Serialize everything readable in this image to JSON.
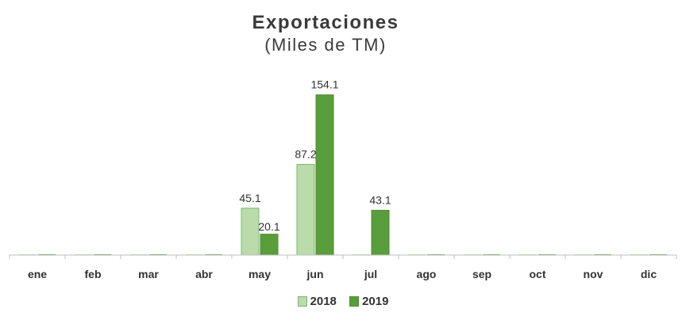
{
  "chart_data": {
    "type": "bar",
    "title": "Exportaciones",
    "subtitle": "(Miles de TM)",
    "categories": [
      "ene",
      "feb",
      "mar",
      "abr",
      "may",
      "jun",
      "jul",
      "ago",
      "sep",
      "oct",
      "nov",
      "dic"
    ],
    "series": [
      {
        "name": "2018",
        "color": "#b9dcaa",
        "border": "#79b865",
        "values": [
          0,
          0,
          0,
          0,
          45.1,
          87.2,
          0,
          0,
          0,
          0,
          0,
          0
        ],
        "labels": [
          "",
          "",
          "",
          "",
          "45.1",
          "87.2",
          "",
          "",
          "",
          "",
          "",
          ""
        ]
      },
      {
        "name": "2019",
        "color": "#5a9e3c",
        "border": "#4f8a34",
        "values": [
          0,
          0,
          0,
          0,
          20.1,
          154.1,
          43.1,
          0,
          0,
          0,
          0,
          0
        ],
        "labels": [
          "",
          "",
          "",
          "",
          "20.1",
          "154.1",
          "43.1",
          "",
          "",
          "",
          "",
          ""
        ]
      }
    ],
    "ylim": [
      0,
      160
    ],
    "grid": false,
    "legend_position": "bottom"
  }
}
